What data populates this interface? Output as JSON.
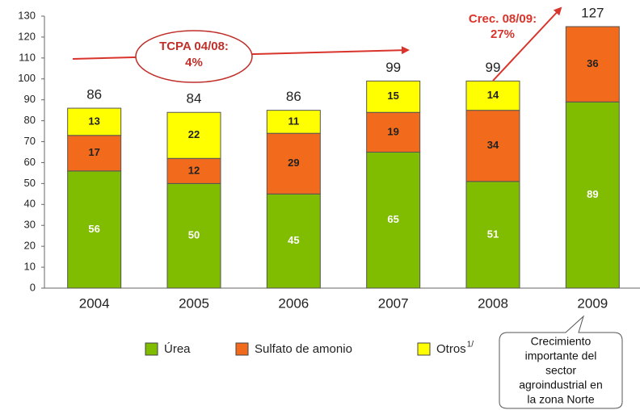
{
  "chart_data": {
    "type": "stacked_bar",
    "categories": [
      "2004",
      "2005",
      "2006",
      "2007",
      "2008",
      "2009"
    ],
    "series": [
      {
        "name": "Úrea",
        "color": "#80bc00",
        "label_color": "#ffffff",
        "values": [
          56,
          50,
          45,
          65,
          51,
          89
        ]
      },
      {
        "name": "Sulfato de amonio",
        "color": "#f26a1b",
        "label_color": "#222222",
        "values": [
          17,
          12,
          29,
          19,
          34,
          36
        ]
      },
      {
        "name": "Otros",
        "name_superscript": "1/",
        "color": "#ffff00",
        "label_color": "#222222",
        "values": [
          13,
          22,
          11,
          15,
          14,
          null
        ]
      }
    ],
    "totals": [
      86,
      84,
      86,
      99,
      99,
      127
    ],
    "ylim": [
      0,
      130
    ],
    "yticks": [
      0,
      10,
      20,
      30,
      40,
      50,
      60,
      70,
      80,
      90,
      100,
      110,
      120,
      130
    ],
    "grid": false,
    "annotations": {
      "tcpa": [
        "TCPA 04/08:",
        "4%"
      ],
      "crec": [
        "Crec. 08/09:",
        "27%"
      ],
      "callout": [
        "Crecimiento",
        "importante del",
        "sector",
        "agroindustrial en",
        "la zona Norte"
      ]
    }
  }
}
